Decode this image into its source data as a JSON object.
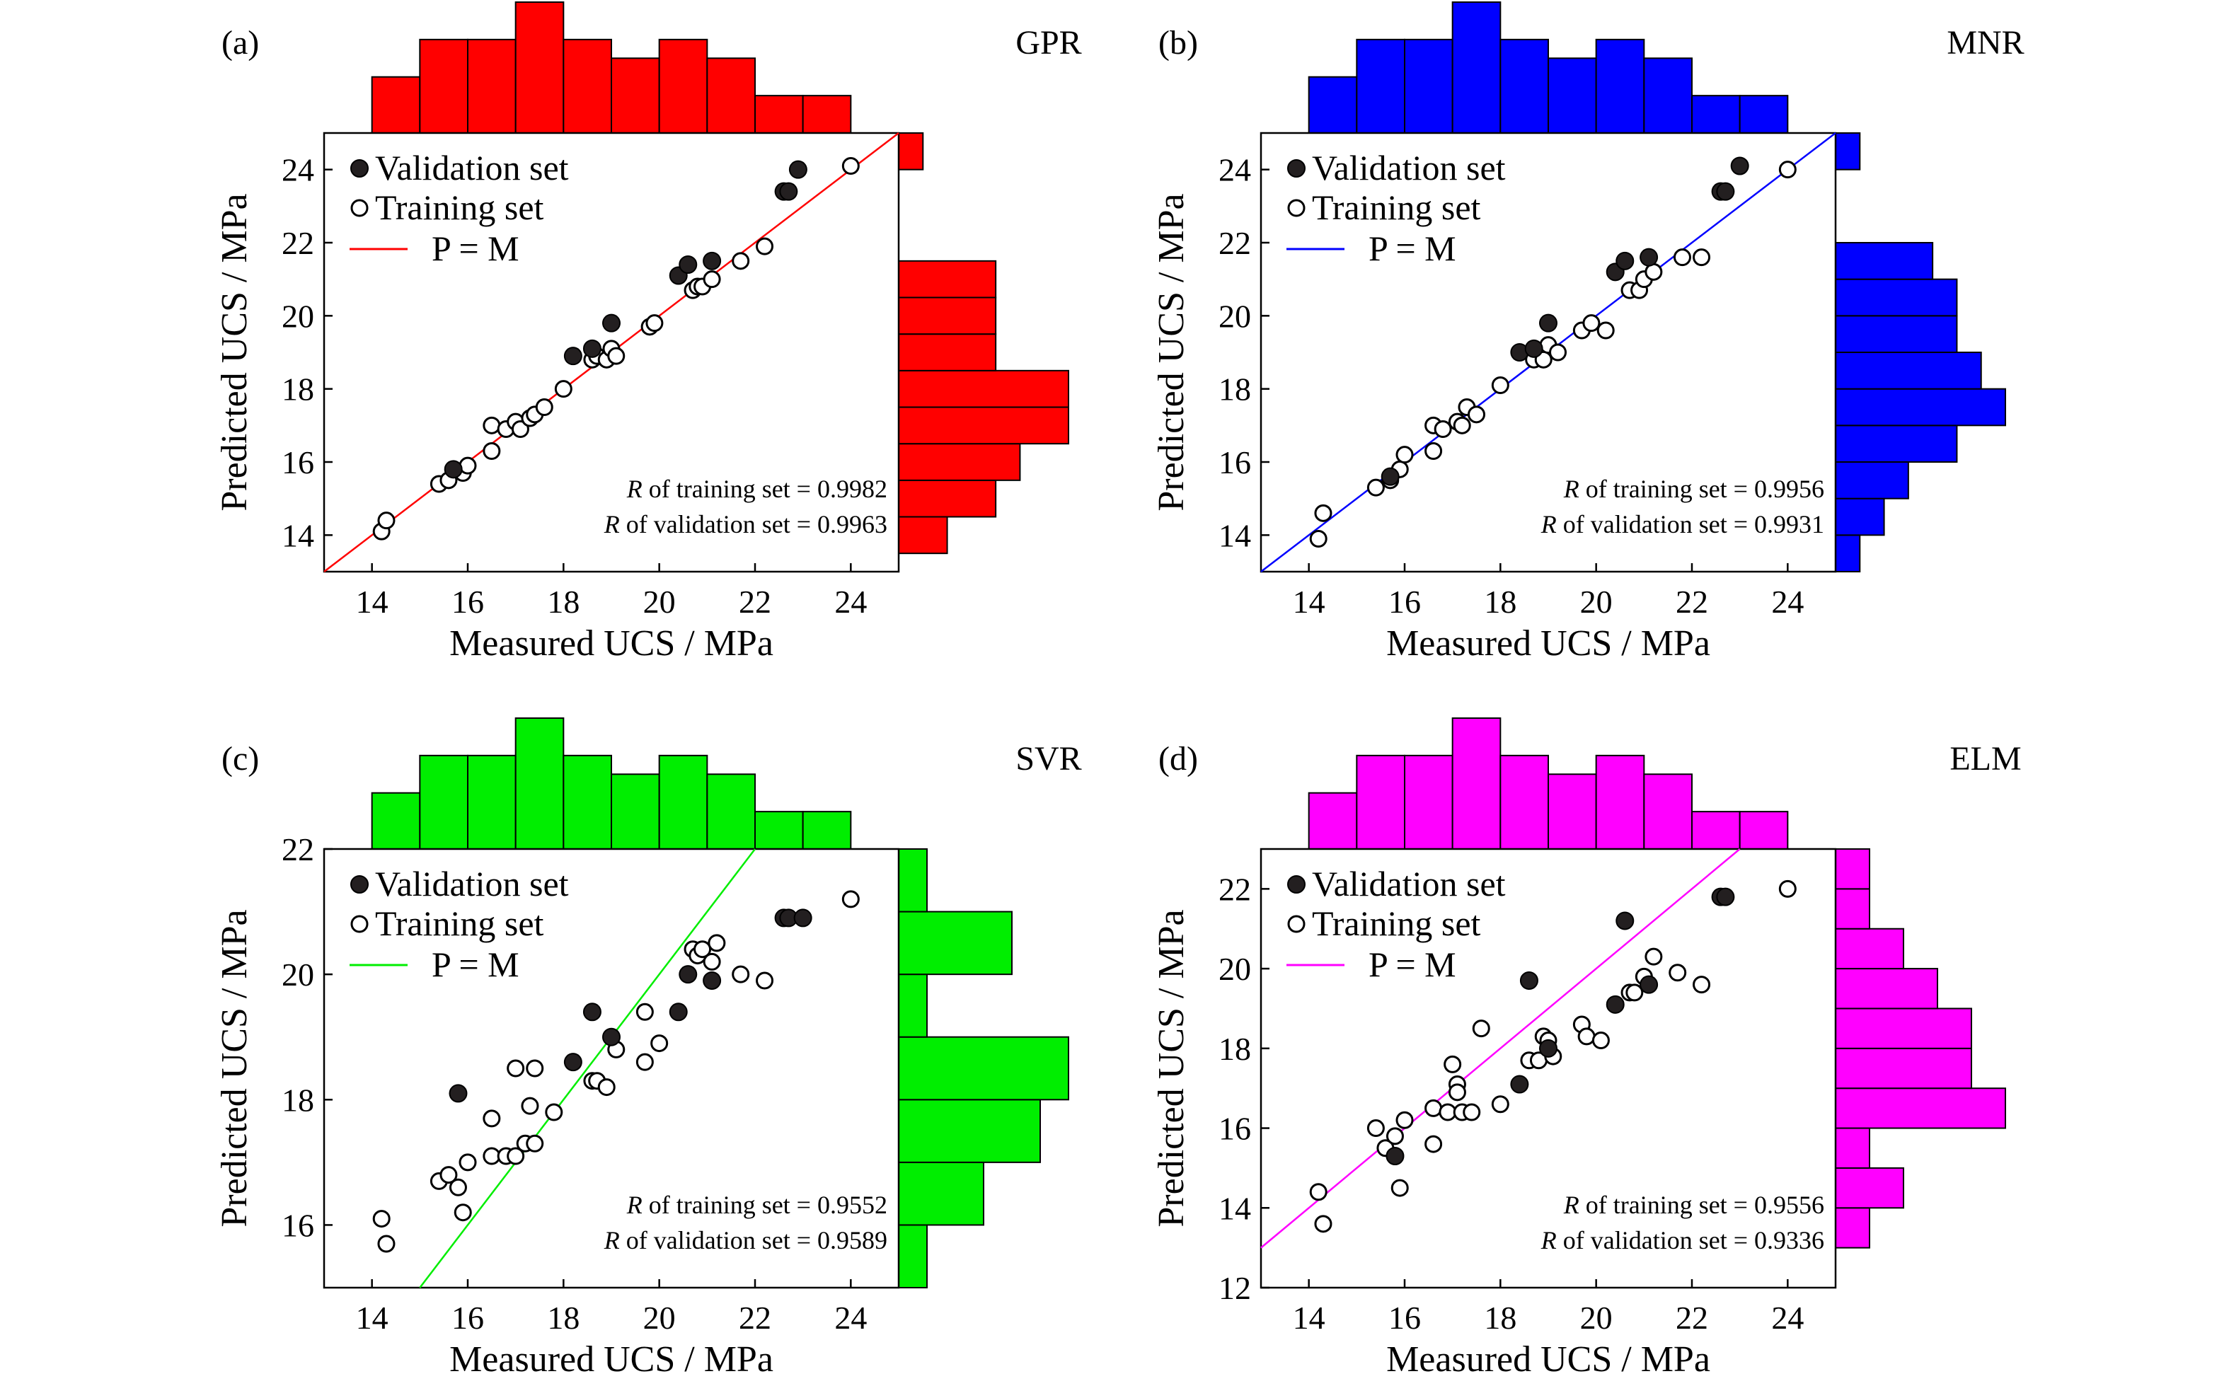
{
  "figure": {
    "x_axis_title": "Measured UCS / MPa",
    "y_axis_title": "Predicted UCS / MPa",
    "legend": {
      "validation": "Validation set",
      "training": "Training set",
      "line": "P = M"
    },
    "r_training_prefix": "R",
    "r_training_suffix": " of training set = ",
    "r_validation_prefix": "R",
    "r_validation_suffix": " of validation set = "
  },
  "chart_data": [
    {
      "type": "scatter",
      "panel": "(a)",
      "model": "GPR",
      "color": "#ff0000",
      "xlim": [
        13,
        25
      ],
      "ylim": [
        13,
        25
      ],
      "x_ticks": [
        14,
        16,
        18,
        20,
        22,
        24
      ],
      "y_ticks": [
        14,
        16,
        18,
        20,
        22,
        24
      ],
      "r_training": "0.9982",
      "r_validation": "0.9963",
      "training": [
        [
          14.2,
          14.1
        ],
        [
          14.3,
          14.4
        ],
        [
          15.4,
          15.4
        ],
        [
          15.6,
          15.5
        ],
        [
          15.9,
          15.7
        ],
        [
          16.0,
          15.9
        ],
        [
          16.5,
          16.3
        ],
        [
          16.5,
          17.0
        ],
        [
          16.8,
          16.9
        ],
        [
          17.0,
          17.1
        ],
        [
          17.1,
          16.9
        ],
        [
          17.3,
          17.2
        ],
        [
          17.4,
          17.3
        ],
        [
          17.6,
          17.5
        ],
        [
          18.0,
          18.0
        ],
        [
          18.6,
          18.8
        ],
        [
          18.7,
          18.9
        ],
        [
          18.9,
          18.8
        ],
        [
          19.0,
          19.1
        ],
        [
          19.1,
          18.9
        ],
        [
          19.8,
          19.7
        ],
        [
          19.9,
          19.8
        ],
        [
          20.7,
          20.7
        ],
        [
          20.8,
          20.8
        ],
        [
          20.9,
          20.8
        ],
        [
          21.1,
          21.0
        ],
        [
          21.7,
          21.5
        ],
        [
          22.2,
          21.9
        ],
        [
          24.0,
          24.1
        ]
      ],
      "validation": [
        [
          15.7,
          15.8
        ],
        [
          18.2,
          18.9
        ],
        [
          18.6,
          19.1
        ],
        [
          19.0,
          19.8
        ],
        [
          20.4,
          21.1
        ],
        [
          20.6,
          21.4
        ],
        [
          21.1,
          21.5
        ],
        [
          22.6,
          23.4
        ],
        [
          22.7,
          23.4
        ],
        [
          22.9,
          24.0
        ]
      ],
      "hist_x": {
        "edges": [
          14,
          15,
          16,
          17,
          18,
          19,
          20,
          21,
          22,
          23,
          24,
          25
        ],
        "counts": [
          3,
          5,
          5,
          7,
          5,
          4,
          5,
          4,
          2,
          2,
          0
        ]
      },
      "hist_y": {
        "edges": [
          13.5,
          14.5,
          15.5,
          16.5,
          17.5,
          18.5,
          19.5,
          20.5,
          21.5,
          24,
          25
        ],
        "counts": [
          2,
          4,
          5,
          7,
          7,
          4,
          4,
          4,
          0,
          1
        ]
      }
    },
    {
      "type": "scatter",
      "panel": "(b)",
      "model": "MNR",
      "color": "#0000ff",
      "xlim": [
        13,
        25
      ],
      "ylim": [
        13,
        25
      ],
      "x_ticks": [
        14,
        16,
        18,
        20,
        22,
        24
      ],
      "y_ticks": [
        14,
        16,
        18,
        20,
        22,
        24
      ],
      "r_training": "0.9956",
      "r_validation": "0.9931",
      "training": [
        [
          14.2,
          13.9
        ],
        [
          14.3,
          14.6
        ],
        [
          15.4,
          15.3
        ],
        [
          15.7,
          15.5
        ],
        [
          15.9,
          15.8
        ],
        [
          16.0,
          16.2
        ],
        [
          16.6,
          16.3
        ],
        [
          16.6,
          17.0
        ],
        [
          16.8,
          16.9
        ],
        [
          17.1,
          17.1
        ],
        [
          17.2,
          17.0
        ],
        [
          17.3,
          17.5
        ],
        [
          17.5,
          17.3
        ],
        [
          18.0,
          18.1
        ],
        [
          18.7,
          18.8
        ],
        [
          18.9,
          18.8
        ],
        [
          19.0,
          19.2
        ],
        [
          19.2,
          19.0
        ],
        [
          19.7,
          19.6
        ],
        [
          19.9,
          19.8
        ],
        [
          20.2,
          19.6
        ],
        [
          20.7,
          20.7
        ],
        [
          20.9,
          20.7
        ],
        [
          21.0,
          21.0
        ],
        [
          21.2,
          21.2
        ],
        [
          21.8,
          21.6
        ],
        [
          22.2,
          21.6
        ],
        [
          24.0,
          24.0
        ]
      ],
      "validation": [
        [
          15.7,
          15.6
        ],
        [
          18.4,
          19.0
        ],
        [
          18.7,
          19.1
        ],
        [
          19.0,
          19.8
        ],
        [
          20.4,
          21.2
        ],
        [
          20.6,
          21.5
        ],
        [
          21.1,
          21.6
        ],
        [
          22.6,
          23.4
        ],
        [
          22.7,
          23.4
        ],
        [
          23.0,
          24.1
        ]
      ],
      "hist_x": {
        "edges": [
          14,
          15,
          16,
          17,
          18,
          19,
          20,
          21,
          22,
          23,
          24,
          25
        ],
        "counts": [
          3,
          5,
          5,
          7,
          5,
          4,
          5,
          4,
          2,
          2,
          0
        ]
      },
      "hist_y": {
        "edges": [
          13,
          14,
          15,
          16,
          17,
          18,
          19,
          20,
          21,
          22,
          24,
          25
        ],
        "counts": [
          1,
          2,
          3,
          5,
          7,
          6,
          5,
          5,
          4,
          0,
          1
        ]
      }
    },
    {
      "type": "scatter",
      "panel": "(c)",
      "model": "SVR",
      "color": "#00ee00",
      "xlim": [
        13,
        25
      ],
      "ylim": [
        15,
        22
      ],
      "x_ticks": [
        14,
        16,
        18,
        20,
        22,
        24
      ],
      "y_ticks": [
        16,
        18,
        20,
        22
      ],
      "r_training": "0.9552",
      "r_validation": "0.9589",
      "training": [
        [
          14.2,
          16.1
        ],
        [
          14.3,
          15.7
        ],
        [
          15.4,
          16.7
        ],
        [
          15.6,
          16.8
        ],
        [
          15.8,
          16.6
        ],
        [
          15.9,
          16.2
        ],
        [
          16.0,
          17.0
        ],
        [
          16.5,
          17.1
        ],
        [
          16.5,
          17.7
        ],
        [
          16.8,
          17.1
        ],
        [
          17.0,
          17.1
        ],
        [
          17.0,
          18.5
        ],
        [
          17.2,
          17.3
        ],
        [
          17.3,
          17.9
        ],
        [
          17.4,
          18.5
        ],
        [
          17.4,
          17.3
        ],
        [
          17.8,
          17.8
        ],
        [
          18.6,
          18.3
        ],
        [
          18.7,
          18.3
        ],
        [
          18.9,
          18.2
        ],
        [
          19.1,
          18.8
        ],
        [
          19.7,
          19.4
        ],
        [
          19.7,
          18.6
        ],
        [
          20.0,
          18.9
        ],
        [
          20.7,
          20.4
        ],
        [
          20.8,
          20.3
        ],
        [
          20.9,
          20.4
        ],
        [
          21.1,
          20.2
        ],
        [
          21.2,
          20.5
        ],
        [
          21.7,
          20.0
        ],
        [
          22.2,
          19.9
        ],
        [
          24.0,
          21.2
        ]
      ],
      "validation": [
        [
          15.8,
          18.1
        ],
        [
          18.2,
          18.6
        ],
        [
          18.6,
          19.4
        ],
        [
          19.0,
          19.0
        ],
        [
          20.4,
          19.4
        ],
        [
          20.6,
          20.0
        ],
        [
          21.1,
          19.9
        ],
        [
          22.6,
          20.9
        ],
        [
          22.7,
          20.9
        ],
        [
          23.0,
          20.9
        ]
      ],
      "hist_x": {
        "edges": [
          14,
          15,
          16,
          17,
          18,
          19,
          20,
          21,
          22,
          23,
          24,
          25
        ],
        "counts": [
          3,
          5,
          5,
          7,
          5,
          4,
          5,
          4,
          2,
          2,
          0
        ]
      },
      "hist_y": {
        "edges": [
          15,
          16,
          17,
          18,
          19,
          20,
          21,
          22
        ],
        "counts": [
          1,
          3,
          5,
          6,
          1,
          4,
          1
        ]
      }
    },
    {
      "type": "scatter",
      "panel": "(d)",
      "model": "ELM",
      "color": "#ff00ff",
      "xlim": [
        13,
        25
      ],
      "ylim": [
        12,
        23
      ],
      "x_ticks": [
        14,
        16,
        18,
        20,
        22,
        24
      ],
      "y_ticks": [
        12,
        14,
        16,
        18,
        20,
        22
      ],
      "r_training": "0.9556",
      "r_validation": "0.9336",
      "training": [
        [
          14.2,
          14.4
        ],
        [
          14.3,
          13.6
        ],
        [
          15.4,
          16.0
        ],
        [
          15.6,
          15.5
        ],
        [
          15.8,
          15.8
        ],
        [
          15.9,
          14.5
        ],
        [
          16.0,
          16.2
        ],
        [
          16.6,
          15.6
        ],
        [
          16.6,
          16.5
        ],
        [
          16.9,
          16.4
        ],
        [
          17.0,
          17.6
        ],
        [
          17.1,
          17.1
        ],
        [
          17.1,
          16.9
        ],
        [
          17.2,
          16.4
        ],
        [
          17.4,
          16.4
        ],
        [
          17.6,
          18.5
        ],
        [
          18.0,
          16.6
        ],
        [
          18.6,
          17.7
        ],
        [
          18.8,
          17.7
        ],
        [
          18.9,
          18.3
        ],
        [
          19.0,
          18.2
        ],
        [
          19.1,
          17.8
        ],
        [
          19.7,
          18.6
        ],
        [
          19.8,
          18.3
        ],
        [
          20.1,
          18.2
        ],
        [
          20.7,
          19.4
        ],
        [
          20.8,
          19.4
        ],
        [
          21.0,
          19.8
        ],
        [
          21.2,
          20.3
        ],
        [
          21.7,
          19.9
        ],
        [
          22.2,
          19.6
        ],
        [
          24.0,
          22.0
        ]
      ],
      "validation": [
        [
          15.8,
          15.3
        ],
        [
          18.4,
          17.1
        ],
        [
          18.6,
          19.7
        ],
        [
          19.0,
          18.0
        ],
        [
          20.4,
          19.1
        ],
        [
          20.6,
          21.2
        ],
        [
          21.1,
          19.6
        ],
        [
          22.6,
          21.8
        ],
        [
          22.7,
          21.8
        ]
      ],
      "hist_x": {
        "edges": [
          14,
          15,
          16,
          17,
          18,
          19,
          20,
          21,
          22,
          23,
          24,
          25
        ],
        "counts": [
          3,
          5,
          5,
          7,
          5,
          4,
          5,
          4,
          2,
          2,
          0
        ]
      },
      "hist_y": {
        "edges": [
          13,
          14,
          15,
          16,
          17,
          18,
          19,
          20,
          21,
          22,
          23
        ],
        "counts": [
          1,
          2,
          1,
          5,
          4,
          4,
          3,
          2,
          1,
          1
        ]
      }
    }
  ]
}
